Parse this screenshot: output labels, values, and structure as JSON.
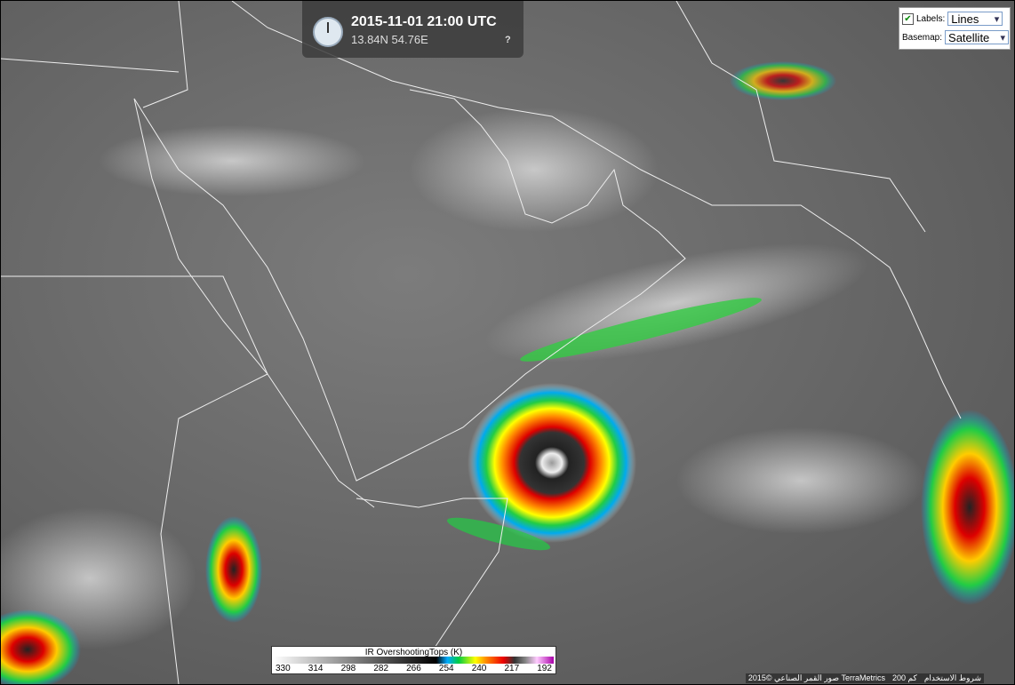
{
  "header": {
    "timestamp": "2015-11-01 21:00 UTC",
    "coordinates": "13.84N 54.76E",
    "help": "?"
  },
  "controls": {
    "labels_label": "Labels:",
    "labels_checked": true,
    "labels_value": "Lines",
    "basemap_label": "Basemap:",
    "basemap_value": "Satellite"
  },
  "legend": {
    "title": "IR OvershootingTops (K)",
    "ticks": [
      330,
      314,
      298,
      282,
      266,
      254,
      240,
      217,
      192
    ]
  },
  "attribution": {
    "terms": "شروط الاستخدام",
    "scale": "200 كم",
    "credit": "صور القمر الصناعي ©2015 TerraMetrics"
  }
}
